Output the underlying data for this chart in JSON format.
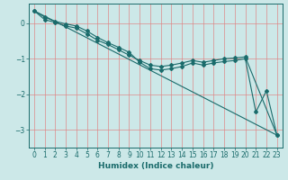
{
  "xlabel": "Humidex (Indice chaleur)",
  "ylabel": "",
  "background_color": "#cce8e8",
  "line_color": "#1a6b6b",
  "grid_color": "#e08080",
  "xlim": [
    -0.5,
    23.5
  ],
  "ylim": [
    -3.5,
    0.55
  ],
  "xticks": [
    0,
    1,
    2,
    3,
    4,
    5,
    6,
    7,
    8,
    9,
    10,
    11,
    12,
    13,
    14,
    15,
    16,
    17,
    18,
    19,
    20,
    21,
    22,
    23
  ],
  "yticks": [
    0,
    -1,
    -2,
    -3
  ],
  "line1_x": [
    0,
    1,
    2,
    3,
    4,
    5,
    6,
    7,
    8,
    9,
    10,
    11,
    12,
    13,
    14,
    15,
    16,
    17,
    18,
    19,
    20,
    21,
    22,
    23
  ],
  "line1_y": [
    0.35,
    0.17,
    0.05,
    -0.02,
    -0.08,
    -0.22,
    -0.4,
    -0.55,
    -0.68,
    -0.82,
    -1.1,
    -1.28,
    -1.32,
    -1.28,
    -1.22,
    -1.12,
    -1.18,
    -1.12,
    -1.08,
    -1.05,
    -1.0,
    -2.5,
    -1.9,
    -3.15
  ],
  "line2_x": [
    0,
    1,
    2,
    3,
    4,
    5,
    6,
    7,
    8,
    9,
    10,
    11,
    12,
    13,
    14,
    15,
    16,
    17,
    18,
    19,
    20,
    23
  ],
  "line2_y": [
    0.35,
    0.1,
    0.02,
    -0.08,
    -0.14,
    -0.3,
    -0.48,
    -0.6,
    -0.75,
    -0.9,
    -1.05,
    -1.18,
    -1.22,
    -1.18,
    -1.12,
    -1.05,
    -1.1,
    -1.05,
    -1.0,
    -0.98,
    -0.95,
    -3.15
  ],
  "line3_x": [
    0,
    23
  ],
  "line3_y": [
    0.35,
    -3.15
  ]
}
